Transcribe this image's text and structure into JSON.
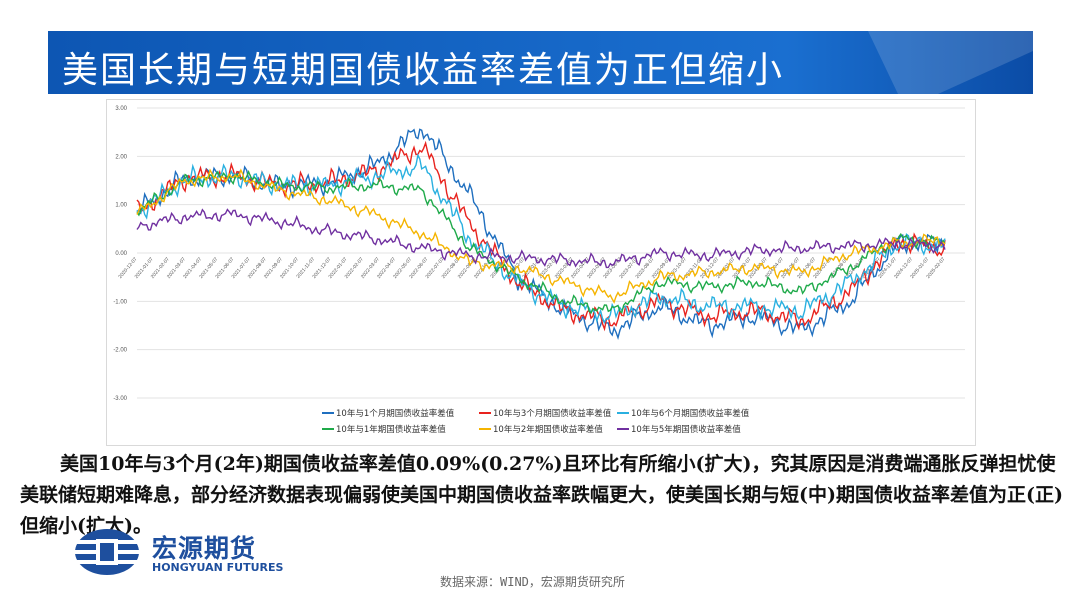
{
  "title": "美国长期与短期国债收益率差值为正但缩小",
  "paragraph": "美国10年与3个月(2年)期国债收益率差值0.09%(0.27%)且环比有所缩小(扩大)，究其原因是消费端通胀反弹担忧使美联储短期难降息，部分经济数据表现偏弱使美国中期国债收益率跌幅更大，使美国长期与短(中)期国债收益率差值为正(正)但缩小(扩大)。",
  "logo": {
    "name": "宏源期货",
    "english": "HONGYUAN FUTURES"
  },
  "source": "数据来源：WIND，宏源期货研究所",
  "colors": {
    "title_bar": "#1565c0",
    "accent": "#1e4f9e"
  },
  "chart_data": {
    "type": "line",
    "ylim": [
      -3,
      3
    ],
    "yticks": [
      "3.00",
      "2.00",
      "1.00",
      "0.00",
      "-1.00",
      "-2.00",
      "-3.00"
    ],
    "x": [
      "2020-12",
      "2021-03",
      "2021-06",
      "2021-09",
      "2021-12",
      "2022-03",
      "2022-06",
      "2022-09",
      "2022-12",
      "2023-03",
      "2023-06",
      "2023-09",
      "2023-12",
      "2024-03",
      "2024-06",
      "2024-09",
      "2024-12",
      "2025-03"
    ],
    "xticks": [
      "2020-12-07",
      "2021-01-07",
      "2021-02-07",
      "2021-03-07",
      "2021-04-07",
      "2021-05-07",
      "2021-06-07",
      "2021-07-07",
      "2021-08-07",
      "2021-09-07",
      "2021-10-07",
      "2021-11-07",
      "2021-12-07",
      "2022-01-07",
      "2022-02-07",
      "2022-03-07",
      "2022-04-07",
      "2022-05-07",
      "2022-06-07",
      "2022-07-07",
      "2022-08-07",
      "2022-09-07",
      "2022-10-07",
      "2022-11-07",
      "2022-12-07",
      "2023-01-07",
      "2023-02-07",
      "2023-03-07",
      "2023-04-07",
      "2023-05-07",
      "2023-06-07",
      "2023-07-07",
      "2023-08-07",
      "2023-09-07",
      "2023-10-07",
      "2023-11-07",
      "2023-12-07",
      "2024-01-07",
      "2024-02-07",
      "2024-03-07",
      "2024-04-07",
      "2024-05-07",
      "2024-06-07",
      "2024-07-07",
      "2024-08-07",
      "2024-09-07",
      "2024-10-07",
      "2024-11-07",
      "2024-12-07",
      "2025-01-07",
      "2025-02-07"
    ],
    "series": [
      {
        "name": "10年与1个月期国债收益率差值",
        "color": "#1f6fbf",
        "values": [
          0.85,
          1.55,
          1.6,
          1.4,
          1.45,
          1.8,
          2.6,
          1.2,
          -0.5,
          -1.2,
          -1.6,
          -1.1,
          -1.5,
          -1.3,
          -1.6,
          -1.0,
          0.2,
          0.2
        ]
      },
      {
        "name": "10年与3个月期国债收益率差值",
        "color": "#e8231e",
        "values": [
          0.85,
          1.55,
          1.6,
          1.4,
          1.45,
          1.7,
          2.2,
          0.6,
          -0.6,
          -1.2,
          -1.4,
          -1.0,
          -1.3,
          -1.2,
          -1.4,
          -0.8,
          0.25,
          0.09
        ]
      },
      {
        "name": "10年与6个月期国债收益率差值",
        "color": "#2ab0e0",
        "values": [
          0.85,
          1.5,
          1.6,
          1.4,
          1.4,
          1.6,
          1.8,
          0.3,
          -0.6,
          -1.1,
          -1.3,
          -0.9,
          -1.1,
          -1.1,
          -1.2,
          -0.6,
          0.2,
          0.15
        ]
      },
      {
        "name": "10年与1年期国债收益率差值",
        "color": "#1faa4a",
        "values": [
          0.85,
          1.5,
          1.6,
          1.4,
          1.35,
          1.4,
          1.3,
          0.1,
          -0.5,
          -1.0,
          -1.2,
          -0.6,
          -0.7,
          -0.6,
          -0.8,
          -0.3,
          0.3,
          0.2
        ]
      },
      {
        "name": "10年与2年期国债收益率差值",
        "color": "#f5b400",
        "values": [
          0.8,
          1.5,
          1.6,
          1.3,
          1.1,
          0.8,
          0.4,
          -0.2,
          -0.3,
          -0.6,
          -0.9,
          -0.5,
          -0.4,
          -0.3,
          -0.4,
          0.0,
          0.2,
          0.27
        ]
      },
      {
        "name": "10年与5年期国债收益率差值",
        "color": "#7030a0",
        "values": [
          0.55,
          0.75,
          0.8,
          0.65,
          0.45,
          0.3,
          0.1,
          -0.05,
          -0.1,
          -0.15,
          -0.2,
          0.0,
          -0.05,
          0.05,
          0.1,
          0.15,
          0.2,
          0.15
        ]
      }
    ]
  }
}
